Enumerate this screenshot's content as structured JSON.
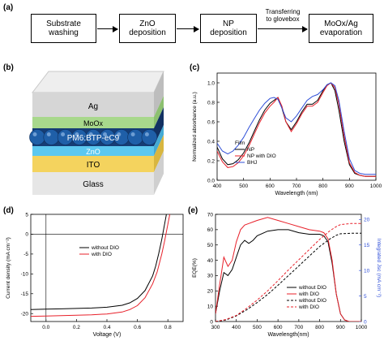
{
  "panels": {
    "a": "(a)",
    "b": "(b)",
    "c": "(c)",
    "d": "(d)",
    "e": "(e)"
  },
  "flow": {
    "steps": [
      "Substrate\nwashing",
      "ZnO\ndeposition",
      "NP\ndeposition",
      "MoOx/Ag\nevaporation"
    ],
    "transfer_label": "Transferring\nto glovebox"
  },
  "device": {
    "layers": [
      "Ag",
      "MoOx",
      "PM6:BTP-eC9",
      "ZnO",
      "ITO",
      "Glass"
    ],
    "colors": {
      "ag": "#d6d6d6",
      "moox": "#a8d88c",
      "active": "#1f4e8c",
      "zno": "#5cc8f0",
      "ito": "#f4d35e",
      "glass": "#e6e6e6"
    }
  },
  "chart_data": [
    {
      "id": "c",
      "type": "line",
      "xlabel": "Wavelength (nm)",
      "ylabel": "Normalized absorbance (a.u.)",
      "xlim": [
        400,
        1000
      ],
      "ylim": [
        0.0,
        1.1
      ],
      "xticks": [
        400,
        500,
        600,
        700,
        800,
        900,
        1000
      ],
      "yticks": [
        0.0,
        0.2,
        0.4,
        0.6,
        0.8,
        1.0
      ],
      "legend_title": "Film",
      "legend_placement": "center-left",
      "series": [
        {
          "name": "NP",
          "color": "#000000",
          "x": [
            400,
            420,
            440,
            460,
            480,
            500,
            520,
            540,
            560,
            580,
            600,
            615,
            630,
            645,
            660,
            680,
            700,
            720,
            740,
            760,
            780,
            800,
            815,
            830,
            845,
            860,
            880,
            900,
            920,
            940,
            960,
            980,
            1000
          ],
          "y": [
            0.34,
            0.22,
            0.16,
            0.17,
            0.21,
            0.28,
            0.38,
            0.5,
            0.62,
            0.72,
            0.79,
            0.82,
            0.85,
            0.74,
            0.6,
            0.52,
            0.6,
            0.7,
            0.78,
            0.78,
            0.82,
            0.92,
            0.98,
            1.0,
            0.92,
            0.72,
            0.4,
            0.16,
            0.07,
            0.05,
            0.04,
            0.04,
            0.04
          ]
        },
        {
          "name": "NP with DIO",
          "color": "#e8202a",
          "x": [
            400,
            420,
            440,
            460,
            480,
            500,
            520,
            540,
            560,
            580,
            600,
            615,
            630,
            645,
            660,
            680,
            700,
            720,
            740,
            760,
            780,
            800,
            815,
            830,
            845,
            860,
            880,
            900,
            920,
            940,
            960,
            980,
            1000
          ],
          "y": [
            0.3,
            0.19,
            0.13,
            0.14,
            0.18,
            0.25,
            0.35,
            0.47,
            0.59,
            0.69,
            0.76,
            0.8,
            0.85,
            0.76,
            0.6,
            0.5,
            0.58,
            0.68,
            0.76,
            0.76,
            0.8,
            0.9,
            0.97,
            1.0,
            0.95,
            0.78,
            0.45,
            0.18,
            0.08,
            0.05,
            0.04,
            0.04,
            0.04
          ]
        },
        {
          "name": "BHJ",
          "color": "#2f4fd8",
          "x": [
            400,
            420,
            440,
            460,
            480,
            500,
            520,
            540,
            560,
            580,
            600,
            615,
            630,
            645,
            660,
            680,
            700,
            720,
            740,
            760,
            780,
            800,
            815,
            830,
            845,
            860,
            880,
            900,
            920,
            940,
            960,
            980,
            1000
          ],
          "y": [
            0.38,
            0.3,
            0.27,
            0.3,
            0.36,
            0.44,
            0.54,
            0.63,
            0.72,
            0.79,
            0.84,
            0.85,
            0.83,
            0.74,
            0.64,
            0.6,
            0.66,
            0.74,
            0.82,
            0.86,
            0.88,
            0.93,
            0.98,
            1.0,
            0.97,
            0.82,
            0.5,
            0.22,
            0.1,
            0.07,
            0.06,
            0.06,
            0.06
          ]
        }
      ]
    },
    {
      "id": "d",
      "type": "line",
      "xlabel": "Voltage (V)",
      "ylabel": "Current density (mA cm⁻²)",
      "xlim": [
        -0.1,
        0.9
      ],
      "ylim": [
        -22,
        5
      ],
      "xticks": [
        0.0,
        0.2,
        0.4,
        0.6,
        0.8
      ],
      "xticklabels": [
        "0.0",
        "0.2",
        "0.4",
        "0.6",
        "0.8"
      ],
      "yticks": [
        -20,
        -15,
        -10,
        -5,
        0,
        5
      ],
      "legend_placement": "center",
      "series": [
        {
          "name": "without DIO",
          "color": "#000000",
          "x": [
            -0.1,
            0.0,
            0.1,
            0.2,
            0.3,
            0.4,
            0.5,
            0.55,
            0.6,
            0.65,
            0.7,
            0.72,
            0.74,
            0.76,
            0.78,
            0.8
          ],
          "y": [
            -19.0,
            -18.9,
            -18.8,
            -18.7,
            -18.6,
            -18.4,
            -17.9,
            -17.3,
            -16.2,
            -14.2,
            -10.5,
            -8.0,
            -4.9,
            -1.3,
            2.8,
            7.0
          ]
        },
        {
          "name": "with DIO",
          "color": "#e8202a",
          "x": [
            -0.1,
            0.0,
            0.1,
            0.2,
            0.3,
            0.4,
            0.5,
            0.55,
            0.6,
            0.65,
            0.7,
            0.73,
            0.76,
            0.78,
            0.8,
            0.82
          ],
          "y": [
            -20.7,
            -20.6,
            -20.5,
            -20.4,
            -20.3,
            -20.1,
            -19.6,
            -19.0,
            -18.0,
            -16.0,
            -12.5,
            -9.5,
            -5.0,
            -1.5,
            2.5,
            6.5
          ]
        }
      ]
    },
    {
      "id": "e",
      "type": "line",
      "xlabel": "Wavelength(nm)",
      "ylabel": "EQE(%)",
      "ylabel_right": "Integrated Jsc (mA cm⁻²)",
      "xlim": [
        300,
        1000
      ],
      "ylim": [
        0,
        70
      ],
      "ylim_right": [
        0,
        21
      ],
      "xticks": [
        300,
        400,
        500,
        600,
        700,
        800,
        900,
        1000
      ],
      "yticks": [
        0,
        10,
        20,
        30,
        40,
        50,
        60,
        70
      ],
      "yticks_right": [
        0,
        5,
        10,
        15,
        20
      ],
      "legend_placement": "bottom-right",
      "series": [
        {
          "name": "without DIO",
          "color": "#000000",
          "style": "solid",
          "axis": "left",
          "x": [
            300,
            320,
            340,
            360,
            380,
            400,
            420,
            440,
            460,
            480,
            500,
            550,
            600,
            650,
            700,
            750,
            800,
            820,
            840,
            860,
            880,
            900,
            920,
            940,
            960,
            980,
            1000
          ],
          "y": [
            5,
            20,
            32,
            30,
            34,
            42,
            50,
            53,
            51,
            53,
            56,
            59,
            60,
            60,
            58,
            57,
            57,
            56,
            52,
            38,
            18,
            5,
            1,
            0,
            0,
            0,
            0
          ]
        },
        {
          "name": "with DIO",
          "color": "#e8202a",
          "style": "solid",
          "axis": "left",
          "x": [
            300,
            320,
            340,
            360,
            380,
            400,
            420,
            440,
            460,
            480,
            500,
            550,
            600,
            650,
            700,
            750,
            800,
            820,
            840,
            860,
            880,
            900,
            920,
            940,
            960,
            980,
            1000
          ],
          "y": [
            5,
            24,
            42,
            36,
            40,
            52,
            60,
            63,
            64,
            65,
            66,
            68,
            66,
            64,
            62,
            60,
            59,
            58,
            54,
            40,
            18,
            5,
            1,
            0,
            0,
            0,
            0
          ]
        },
        {
          "name": "without DIO",
          "color": "#000000",
          "style": "dashed",
          "axis": "right",
          "x": [
            300,
            350,
            400,
            450,
            500,
            550,
            600,
            650,
            700,
            750,
            800,
            850,
            880,
            900,
            950,
            1000
          ],
          "y": [
            0,
            0.3,
            1.1,
            2.3,
            3.7,
            5.3,
            7.1,
            9.0,
            10.9,
            12.8,
            14.7,
            16.2,
            16.9,
            17.2,
            17.3,
            17.3
          ]
        },
        {
          "name": "with DIO",
          "color": "#e8202a",
          "style": "dashed",
          "axis": "right",
          "x": [
            300,
            350,
            400,
            450,
            500,
            550,
            600,
            650,
            700,
            750,
            800,
            850,
            880,
            900,
            950,
            1000
          ],
          "y": [
            0,
            0.4,
            1.2,
            2.6,
            4.2,
            6.0,
            8.0,
            10.1,
            12.1,
            14.1,
            16.1,
            17.8,
            18.6,
            19.0,
            19.2,
            19.2
          ]
        }
      ]
    }
  ]
}
